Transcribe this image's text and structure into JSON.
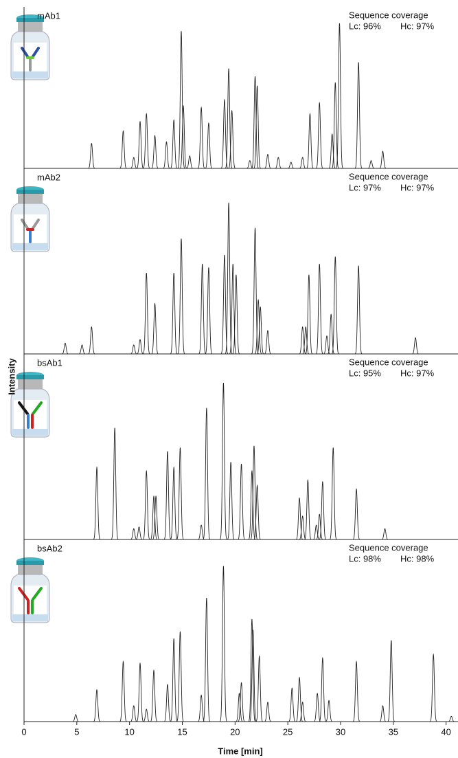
{
  "chart_data": [
    {
      "type": "chromatogram",
      "title": "mAb1",
      "coverage_title": "Sequence coverage",
      "lc": "Lc: 96%",
      "hc": "Hc: 97%",
      "ylabel": "Intensity",
      "xlim": [
        0,
        41
      ],
      "ylim": [
        0,
        100
      ],
      "x": [
        6.4,
        9.4,
        10.4,
        11.0,
        11.6,
        12.4,
        13.5,
        14.2,
        14.9,
        15.1,
        15.7,
        16.8,
        17.5,
        19.0,
        19.4,
        19.7,
        21.4,
        21.9,
        22.1,
        23.1,
        24.1,
        25.3,
        26.4,
        27.1,
        28.0,
        29.2,
        29.5,
        29.9,
        31.7,
        32.9,
        34.0
      ],
      "values": [
        16,
        24,
        7,
        30,
        35,
        21,
        17,
        31,
        88,
        40,
        8,
        39,
        29,
        44,
        64,
        37,
        5,
        59,
        53,
        9,
        7,
        4,
        7,
        35,
        42,
        22,
        55,
        93,
        68,
        5,
        11
      ]
    },
    {
      "type": "chromatogram",
      "title": "mAb2",
      "coverage_title": "Sequence coverage",
      "lc": "Lc: 97%",
      "hc": "Hc: 97%",
      "xlim": [
        0,
        41
      ],
      "ylim": [
        0,
        100
      ],
      "x": [
        3.9,
        5.5,
        6.4,
        10.4,
        11.0,
        11.6,
        12.4,
        14.2,
        14.9,
        16.9,
        17.5,
        19.0,
        19.4,
        19.8,
        20.1,
        21.9,
        22.2,
        22.4,
        23.1,
        26.4,
        26.7,
        27.0,
        28.0,
        28.7,
        29.1,
        29.5,
        31.7,
        37.1
      ],
      "values": [
        6,
        5,
        15,
        5,
        8,
        45,
        28,
        45,
        64,
        50,
        48,
        55,
        84,
        50,
        44,
        70,
        30,
        26,
        13,
        15,
        15,
        44,
        50,
        10,
        22,
        54,
        49,
        9
      ]
    },
    {
      "type": "chromatogram",
      "title": "bsAb1",
      "coverage_title": "Sequence coverage",
      "lc": "Lc: 95%",
      "hc": "Hc: 97%",
      "xlim": [
        0,
        41
      ],
      "ylim": [
        0,
        100
      ],
      "x": [
        6.9,
        8.6,
        10.4,
        10.9,
        11.6,
        12.3,
        12.5,
        13.6,
        14.2,
        14.8,
        16.8,
        17.3,
        18.9,
        19.6,
        20.6,
        21.6,
        21.8,
        22.1,
        26.1,
        26.4,
        26.9,
        27.7,
        28.0,
        28.3,
        29.3,
        31.5,
        34.2
      ],
      "values": [
        40,
        62,
        6,
        7,
        38,
        24,
        24,
        49,
        40,
        51,
        8,
        73,
        87,
        43,
        42,
        38,
        52,
        30,
        23,
        13,
        33,
        8,
        14,
        32,
        51,
        28,
        6
      ]
    },
    {
      "type": "chromatogram",
      "title": "bsAb2",
      "coverage_title": "Sequence coverage",
      "lc": "Lc: 98%",
      "hc": "Hc: 98%",
      "xlabel": "Time [min]",
      "xlim": [
        0,
        41
      ],
      "ylim": [
        0,
        100
      ],
      "xticks": [
        0,
        5,
        10,
        15,
        20,
        25,
        30,
        35,
        40
      ],
      "x": [
        4.9,
        6.9,
        9.4,
        10.4,
        11.0,
        11.6,
        12.3,
        13.6,
        14.2,
        14.8,
        16.8,
        17.3,
        18.9,
        20.4,
        20.6,
        21.6,
        21.7,
        22.3,
        23.1,
        25.4,
        26.1,
        26.4,
        27.8,
        28.3,
        28.9,
        31.5,
        34.0,
        34.8,
        38.8,
        40.5
      ],
      "values": [
        4,
        18,
        34,
        9,
        33,
        7,
        29,
        21,
        47,
        51,
        15,
        70,
        88,
        16,
        22,
        58,
        52,
        37,
        11,
        19,
        25,
        11,
        16,
        36,
        12,
        34,
        9,
        46,
        38,
        3
      ]
    }
  ]
}
